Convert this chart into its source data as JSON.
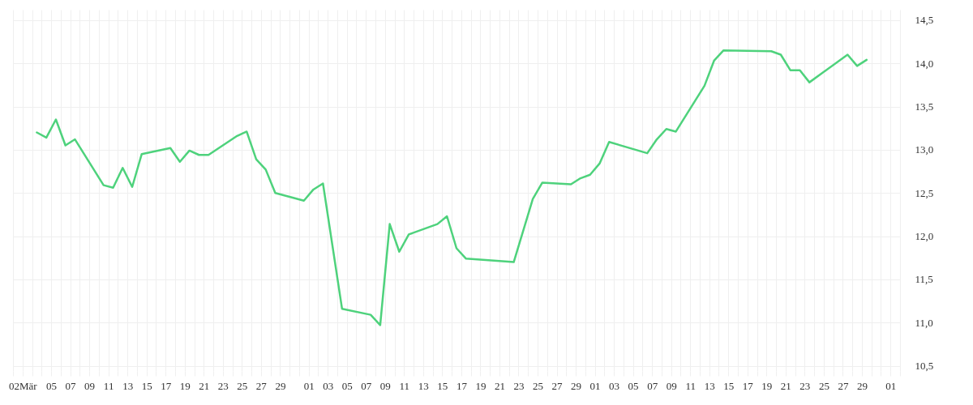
{
  "chart_data": {
    "type": "line",
    "x": [
      "--03-03T12:00",
      "--03-04T12:00",
      "--03-05T12:00",
      "--03-06T12:00",
      "--03-07T12:00",
      "--03-10T12:00",
      "--03-11T12:00",
      "--03-12T12:00",
      "--03-13T12:00",
      "--03-14T12:00",
      "--03-17T12:00",
      "--03-18T12:00",
      "--03-19T12:00",
      "--03-20T12:00",
      "--03-21T12:00",
      "--03-24T12:00",
      "--03-25T12:00",
      "--03-26T12:00",
      "--03-27T12:00",
      "--03-28T12:00",
      "--03-31T12:00",
      "--04-01T12:00",
      "--04-02T12:00",
      "--04-04T12:00",
      "--04-07T12:00",
      "--04-08T12:00",
      "--04-09T12:00",
      "--04-10T12:00",
      "--04-11T12:00",
      "--04-14T12:00",
      "--04-15T12:00",
      "--04-16T12:00",
      "--04-17T12:00",
      "--04-22T12:00",
      "--04-24T12:00",
      "--04-25T12:00",
      "--04-28T12:00",
      "--04-29T12:00",
      "--04-30T12:00",
      "--05-01T12:00",
      "--05-02T12:00",
      "--05-06T12:00",
      "--05-07T12:00",
      "--05-08T12:00",
      "--05-09T12:00",
      "--05-12T12:00",
      "--05-13T12:00",
      "--05-14T12:00",
      "--05-19T12:00",
      "--05-20T12:00",
      "--05-21T12:00",
      "--05-22T12:00",
      "--05-23T12:00",
      "--05-27T12:00",
      "--05-28T12:00",
      "--05-29T12:00"
    ],
    "series": [
      {
        "color": "#4ed27c",
        "values": [
          13.2,
          13.14,
          13.35,
          13.05,
          13.12,
          12.59,
          12.56,
          12.79,
          12.57,
          12.95,
          13.02,
          12.86,
          12.99,
          12.94,
          12.94,
          13.16,
          13.21,
          12.89,
          12.77,
          12.5,
          12.41,
          12.54,
          12.61,
          11.16,
          11.09,
          10.97,
          12.14,
          11.82,
          12.02,
          12.14,
          12.23,
          11.86,
          11.74,
          11.7,
          12.43,
          12.62,
          12.6,
          12.67,
          12.71,
          12.84,
          13.09,
          12.96,
          13.12,
          13.24,
          13.21,
          13.74,
          14.03,
          14.15,
          14.14,
          14.1,
          13.92,
          13.92,
          13.78,
          14.1,
          13.97,
          14.04
        ]
      }
    ],
    "xlim": [
      "--03-01",
      "--06-02"
    ],
    "xticks": [
      {
        "value": "--03-01",
        "label": null
      },
      {
        "value": "--03-02",
        "label": "02Mär"
      },
      {
        "value": "--03-03",
        "label": null
      },
      {
        "value": "--03-04",
        "label": null
      },
      {
        "value": "--03-05",
        "label": "05"
      },
      {
        "value": "--03-06",
        "label": null
      },
      {
        "value": "--03-07",
        "label": "07"
      },
      {
        "value": "--03-08",
        "label": null
      },
      {
        "value": "--03-09",
        "label": "09"
      },
      {
        "value": "--03-10",
        "label": null
      },
      {
        "value": "--03-11",
        "label": "11"
      },
      {
        "value": "--03-12",
        "label": null
      },
      {
        "value": "--03-13",
        "label": "13"
      },
      {
        "value": "--03-14",
        "label": null
      },
      {
        "value": "--03-15",
        "label": "15"
      },
      {
        "value": "--03-16",
        "label": null
      },
      {
        "value": "--03-17",
        "label": "17"
      },
      {
        "value": "--03-18",
        "label": null
      },
      {
        "value": "--03-19",
        "label": "19"
      },
      {
        "value": "--03-20",
        "label": null
      },
      {
        "value": "--03-21",
        "label": "21"
      },
      {
        "value": "--03-22",
        "label": null
      },
      {
        "value": "--03-23",
        "label": "23"
      },
      {
        "value": "--03-24",
        "label": null
      },
      {
        "value": "--03-25",
        "label": "25"
      },
      {
        "value": "--03-26",
        "label": null
      },
      {
        "value": "--03-27",
        "label": "27"
      },
      {
        "value": "--03-28",
        "label": null
      },
      {
        "value": "--03-29",
        "label": "29"
      },
      {
        "value": "--03-30",
        "label": null
      },
      {
        "value": "--03-31",
        "label": null
      },
      {
        "value": "--04-01",
        "label": "01"
      },
      {
        "value": "--04-02",
        "label": null
      },
      {
        "value": "--04-03",
        "label": "03"
      },
      {
        "value": "--04-04",
        "label": null
      },
      {
        "value": "--04-05",
        "label": "05"
      },
      {
        "value": "--04-06",
        "label": null
      },
      {
        "value": "--04-07",
        "label": "07"
      },
      {
        "value": "--04-08",
        "label": null
      },
      {
        "value": "--04-09",
        "label": "09"
      },
      {
        "value": "--04-10",
        "label": null
      },
      {
        "value": "--04-11",
        "label": "11"
      },
      {
        "value": "--04-12",
        "label": null
      },
      {
        "value": "--04-13",
        "label": "13"
      },
      {
        "value": "--04-14",
        "label": null
      },
      {
        "value": "--04-15",
        "label": "15"
      },
      {
        "value": "--04-16",
        "label": null
      },
      {
        "value": "--04-17",
        "label": "17"
      },
      {
        "value": "--04-18",
        "label": null
      },
      {
        "value": "--04-19",
        "label": "19"
      },
      {
        "value": "--04-20",
        "label": null
      },
      {
        "value": "--04-21",
        "label": "21"
      },
      {
        "value": "--04-22",
        "label": null
      },
      {
        "value": "--04-23",
        "label": "23"
      },
      {
        "value": "--04-24",
        "label": null
      },
      {
        "value": "--04-25",
        "label": "25"
      },
      {
        "value": "--04-26",
        "label": null
      },
      {
        "value": "--04-27",
        "label": "27"
      },
      {
        "value": "--04-28",
        "label": null
      },
      {
        "value": "--04-29",
        "label": "29"
      },
      {
        "value": "--04-30",
        "label": null
      },
      {
        "value": "--05-01",
        "label": "01"
      },
      {
        "value": "--05-02",
        "label": null
      },
      {
        "value": "--05-03",
        "label": "03"
      },
      {
        "value": "--05-04",
        "label": null
      },
      {
        "value": "--05-05",
        "label": "05"
      },
      {
        "value": "--05-06",
        "label": null
      },
      {
        "value": "--05-07",
        "label": "07"
      },
      {
        "value": "--05-08",
        "label": null
      },
      {
        "value": "--05-09",
        "label": "09"
      },
      {
        "value": "--05-10",
        "label": null
      },
      {
        "value": "--05-11",
        "label": "11"
      },
      {
        "value": "--05-12",
        "label": null
      },
      {
        "value": "--05-13",
        "label": "13"
      },
      {
        "value": "--05-14",
        "label": null
      },
      {
        "value": "--05-15",
        "label": "15"
      },
      {
        "value": "--05-16",
        "label": null
      },
      {
        "value": "--05-17",
        "label": "17"
      },
      {
        "value": "--05-18",
        "label": null
      },
      {
        "value": "--05-19",
        "label": "19"
      },
      {
        "value": "--05-20",
        "label": null
      },
      {
        "value": "--05-21",
        "label": "21"
      },
      {
        "value": "--05-22",
        "label": null
      },
      {
        "value": "--05-23",
        "label": "23"
      },
      {
        "value": "--05-24",
        "label": null
      },
      {
        "value": "--05-25",
        "label": "25"
      },
      {
        "value": "--05-26",
        "label": null
      },
      {
        "value": "--05-27",
        "label": "27"
      },
      {
        "value": "--05-28",
        "label": null
      },
      {
        "value": "--05-29",
        "label": "29"
      },
      {
        "value": "--05-30",
        "label": null
      },
      {
        "value": "--05-31",
        "label": null
      },
      {
        "value": "--06-01",
        "label": "01"
      },
      {
        "value": "--06-02",
        "label": null
      }
    ],
    "ylim": [
      10.44,
      14.62
    ],
    "yticks": [
      {
        "value": 10.5,
        "label": "10,5"
      },
      {
        "value": 11,
        "label": "11,0"
      },
      {
        "value": 11.5,
        "label": "11,5"
      },
      {
        "value": 12,
        "label": "12,0"
      },
      {
        "value": 12.5,
        "label": "12,5"
      },
      {
        "value": 13,
        "label": "13,0"
      },
      {
        "value": 13.5,
        "label": "13,5"
      },
      {
        "value": 14,
        "label": "14,0"
      },
      {
        "value": 14.5,
        "label": "14,5"
      }
    ],
    "grid": true
  }
}
